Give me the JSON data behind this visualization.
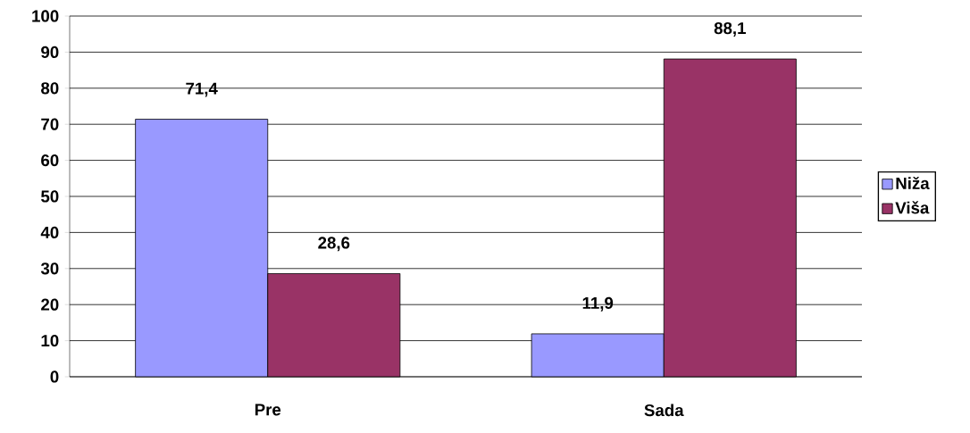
{
  "chart_data": {
    "type": "bar",
    "categories": [
      "Pre",
      "Sada"
    ],
    "series": [
      {
        "name": "Niža",
        "color": "#9999ff",
        "values": [
          71.4,
          11.9
        ],
        "value_labels": [
          "71,4",
          "11,9"
        ]
      },
      {
        "name": "Viša",
        "color": "#993366",
        "values": [
          28.6,
          88.1
        ],
        "value_labels": [
          "28,6",
          "88,1"
        ]
      }
    ],
    "ylim": [
      0,
      100
    ],
    "yticks": [
      0,
      10,
      20,
      30,
      40,
      50,
      60,
      70,
      80,
      90,
      100
    ],
    "grid": "y",
    "legend": "right"
  }
}
